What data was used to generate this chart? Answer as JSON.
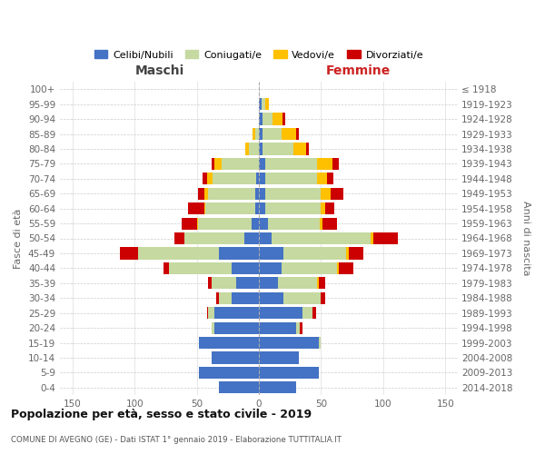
{
  "age_groups": [
    "0-4",
    "5-9",
    "10-14",
    "15-19",
    "20-24",
    "25-29",
    "30-34",
    "35-39",
    "40-44",
    "45-49",
    "50-54",
    "55-59",
    "60-64",
    "65-69",
    "70-74",
    "75-79",
    "80-84",
    "85-89",
    "90-94",
    "95-99",
    "100+"
  ],
  "birth_years": [
    "2014-2018",
    "2009-2013",
    "2004-2008",
    "1999-2003",
    "1994-1998",
    "1989-1993",
    "1984-1988",
    "1979-1983",
    "1974-1978",
    "1969-1973",
    "1964-1968",
    "1959-1963",
    "1954-1958",
    "1949-1953",
    "1944-1948",
    "1939-1943",
    "1934-1938",
    "1929-1933",
    "1924-1928",
    "1919-1923",
    "≤ 1918"
  ],
  "male_celibe": [
    32,
    48,
    38,
    48,
    36,
    36,
    22,
    18,
    22,
    32,
    12,
    6,
    3,
    3,
    2,
    0,
    0,
    0,
    0,
    0,
    0
  ],
  "male_coniugato": [
    0,
    0,
    0,
    0,
    2,
    5,
    10,
    20,
    50,
    65,
    48,
    43,
    40,
    38,
    35,
    30,
    8,
    3,
    0,
    0,
    0
  ],
  "male_vedovo": [
    0,
    0,
    0,
    0,
    0,
    0,
    0,
    0,
    0,
    0,
    0,
    1,
    1,
    3,
    5,
    6,
    3,
    2,
    0,
    0,
    0
  ],
  "male_divorziato": [
    0,
    0,
    0,
    0,
    0,
    1,
    2,
    3,
    5,
    15,
    8,
    12,
    13,
    5,
    3,
    2,
    0,
    0,
    0,
    0,
    0
  ],
  "fem_nubile": [
    30,
    48,
    32,
    48,
    30,
    35,
    20,
    15,
    18,
    20,
    10,
    7,
    5,
    5,
    5,
    5,
    3,
    3,
    3,
    2,
    0
  ],
  "fem_coniugata": [
    0,
    0,
    0,
    2,
    3,
    8,
    30,
    32,
    45,
    50,
    80,
    42,
    45,
    45,
    42,
    42,
    25,
    15,
    8,
    3,
    0
  ],
  "fem_vedova": [
    0,
    0,
    0,
    0,
    0,
    0,
    0,
    1,
    1,
    2,
    2,
    2,
    3,
    8,
    8,
    12,
    10,
    12,
    8,
    3,
    0
  ],
  "fem_divorziata": [
    0,
    0,
    0,
    0,
    2,
    3,
    3,
    5,
    12,
    12,
    20,
    12,
    8,
    10,
    5,
    5,
    2,
    2,
    2,
    0,
    0
  ],
  "color_celibe": "#4472c4",
  "color_coniugato": "#c5d9a0",
  "color_vedovo": "#ffc000",
  "color_divorziato": "#cc0000",
  "xlim": 160,
  "title": "Popolazione per età, sesso e stato civile - 2019",
  "subtitle": "COMUNE DI AVEGNO (GE) - Dati ISTAT 1° gennaio 2019 - Elaborazione TUTTITALIA.IT",
  "legend_labels": [
    "Celibi/Nubili",
    "Coniugati/e",
    "Vedovi/e",
    "Divorziati/e"
  ],
  "label_maschi": "Maschi",
  "label_femmine": "Femmine",
  "ylabel_left": "Fasce di età",
  "ylabel_right": "Anni di nascita"
}
